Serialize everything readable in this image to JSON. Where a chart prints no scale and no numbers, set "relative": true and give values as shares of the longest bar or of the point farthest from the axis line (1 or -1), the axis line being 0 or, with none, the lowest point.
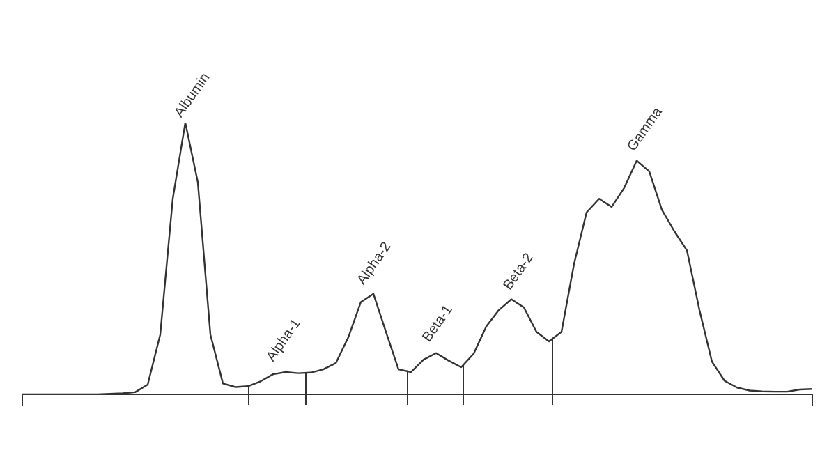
{
  "chart_data": {
    "type": "line",
    "relative": true,
    "marker": "none",
    "line_style": "solid",
    "categories": [
      null,
      null,
      null,
      null,
      null,
      null,
      null,
      null,
      null,
      null,
      null,
      null,
      null,
      null,
      null,
      null,
      null,
      null,
      null,
      null,
      null,
      null,
      null,
      null,
      null,
      null,
      null,
      null,
      null,
      null,
      null,
      null,
      null,
      null,
      null,
      null,
      null,
      null,
      null,
      null,
      null,
      null,
      null,
      null,
      null,
      null,
      null,
      null,
      null,
      null,
      null,
      null,
      null,
      null,
      null,
      null,
      null,
      null,
      null,
      null,
      null,
      null,
      null,
      null
    ],
    "series": [
      {
        "color": "#333333",
        "values": [
          0,
          0,
          0,
          0,
          0,
          0,
          0,
          0.002,
          0.004,
          0.008,
          0.036,
          0.22,
          0.72,
          1,
          0.78,
          0.22,
          0.04,
          0.027,
          0.03,
          0.048,
          0.074,
          0.082,
          0.078,
          0.08,
          0.092,
          0.115,
          0.21,
          0.34,
          0.37,
          0.23,
          0.092,
          0.082,
          0.128,
          0.152,
          0.124,
          0.1,
          0.15,
          0.25,
          0.31,
          0.35,
          0.32,
          0.23,
          0.195,
          0.23,
          0.48,
          0.67,
          0.72,
          0.69,
          0.76,
          0.86,
          0.82,
          0.68,
          0.6,
          0.53,
          0.31,
          0.12,
          0.05,
          0.025,
          0.014,
          0.011,
          0.01,
          0.01,
          0.018,
          0.02
        ]
      }
    ],
    "annotations": [
      "Albumin",
      "Alpha-1",
      "Alpha-2",
      "Beta-1",
      "Beta-2",
      "Gamma"
    ]
  }
}
